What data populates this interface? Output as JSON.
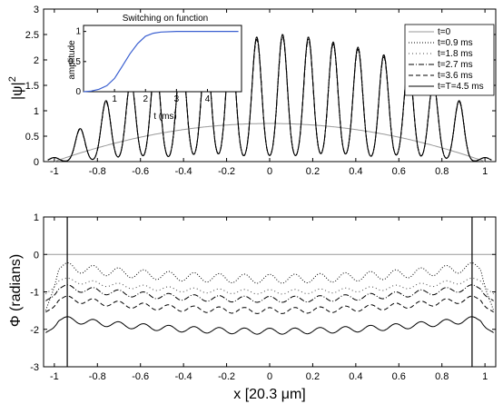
{
  "chart_data": [
    {
      "type": "line",
      "ylabel_main": "|ψ|",
      "ylabel_sup": "2",
      "xlim": [
        -1.05,
        1.05
      ],
      "ylim": [
        0,
        3
      ],
      "xticks": [
        "-1",
        "-0.8",
        "-0.6",
        "-0.4",
        "-0.2",
        "0",
        "0.2",
        "0.4",
        "0.6",
        "0.8",
        "1"
      ],
      "xtick_values": [
        -1,
        -0.8,
        -0.6,
        -0.4,
        -0.2,
        0,
        0.2,
        0.4,
        0.6,
        0.8,
        1
      ],
      "yticks": [
        "0",
        "0.5",
        "1",
        "1.5",
        "2",
        "2.5",
        "3"
      ],
      "ytick_values": [
        0,
        0.5,
        1,
        1.5,
        2,
        2.5,
        3
      ],
      "legend_position": "top-right",
      "legend": [
        {
          "label": "t=0",
          "dash": "",
          "color": "#999999"
        },
        {
          "label": "t=0.9 ms",
          "dash": "1,2",
          "color": "#000000"
        },
        {
          "label": "t=1.8 ms",
          "dash": "1,3",
          "color": "#444444"
        },
        {
          "label": "t=2.7 ms",
          "dash": "6,2,1,2",
          "color": "#000000"
        },
        {
          "label": "t=3.6 ms",
          "dash": "5,3",
          "color": "#000000"
        },
        {
          "label": "t=T=4.5 ms",
          "dash": "",
          "color": "#000000"
        }
      ],
      "series_description": {
        "initial_profile_peak": 0.75,
        "lattice_period": 0.117,
        "peak_heights_x": [
          -1,
          -0.88,
          -0.76,
          -0.645,
          -0.53,
          -0.41,
          -0.295,
          -0.18,
          -0.06,
          0.06,
          0.18,
          0.295,
          0.41,
          0.53,
          0.645,
          0.76,
          0.88,
          1
        ],
        "peak_heights_y": [
          0.08,
          0.65,
          1.2,
          1.6,
          1.95,
          2.15,
          2.25,
          2.4,
          2.45,
          2.5,
          2.45,
          2.35,
          2.25,
          2.1,
          1.9,
          1.55,
          1.2,
          0.08
        ]
      },
      "inset": {
        "title": "Switching  on function",
        "xlabel": "t (ms)",
        "ylabel": "amplitude",
        "xlim": [
          0,
          5.1
        ],
        "ylim": [
          0,
          1.1
        ],
        "xticks": [
          "1",
          "2",
          "3",
          "4"
        ],
        "xtick_values": [
          1,
          2,
          3,
          4
        ],
        "yticks": [
          "0",
          "0.5",
          "1"
        ],
        "ytick_values": [
          0,
          0.5,
          1
        ],
        "line_color": "#3a5fd0",
        "x": [
          0,
          0.25,
          0.5,
          0.75,
          1.0,
          1.25,
          1.5,
          1.75,
          2.0,
          2.25,
          2.5,
          3.0,
          3.5,
          4.0,
          4.5,
          5.0
        ],
        "y": [
          0.0,
          0.01,
          0.04,
          0.1,
          0.22,
          0.42,
          0.63,
          0.8,
          0.92,
          0.97,
          0.99,
          1.0,
          1.0,
          1.0,
          1.0,
          1.0
        ]
      }
    },
    {
      "type": "line",
      "ylabel": "Φ (radians)",
      "xlabel": "x [20.3 μm]",
      "xlim": [
        -1.05,
        1.05
      ],
      "ylim": [
        -3,
        1
      ],
      "xticks": [
        "-1",
        "-0.8",
        "-0.6",
        "-0.4",
        "-0.2",
        "0",
        "0.2",
        "0.4",
        "0.6",
        "0.8",
        "1"
      ],
      "xtick_values": [
        -1,
        -0.8,
        -0.6,
        -0.4,
        -0.2,
        0,
        0.2,
        0.4,
        0.6,
        0.8,
        1
      ],
      "yticks": [
        "-3",
        "-2",
        "-1",
        "0",
        "1"
      ],
      "ytick_values": [
        -3,
        -2,
        -1,
        0,
        1
      ],
      "series": [
        {
          "name": "t=0",
          "level": 0.0,
          "amp": 0.0,
          "color": "#999999",
          "dash": ""
        },
        {
          "name": "t=0.9 ms",
          "level": -0.65,
          "amp": 0.12,
          "color": "#000000",
          "dash": "1,2"
        },
        {
          "name": "t=1.8 ms",
          "level": -1.0,
          "amp": 0.06,
          "color": "#444444",
          "dash": "1,3"
        },
        {
          "name": "t=2.7 ms",
          "level": -1.2,
          "amp": 0.08,
          "color": "#000000",
          "dash": "6,2,1,2"
        },
        {
          "name": "t=3.6 ms",
          "level": -1.5,
          "amp": 0.08,
          "color": "#000000",
          "dash": "5,3"
        },
        {
          "name": "t=T=4.5 ms",
          "level": -2.05,
          "amp": 0.08,
          "color": "#000000",
          "dash": ""
        }
      ],
      "edge_spikes_x": [
        -0.94,
        0.94
      ]
    }
  ]
}
